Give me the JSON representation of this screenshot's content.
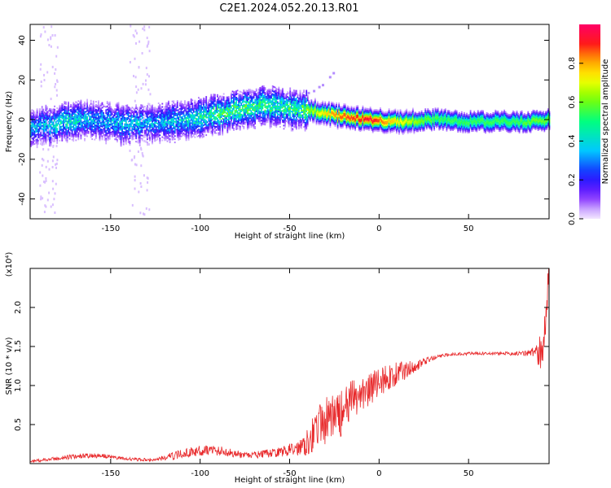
{
  "title": "C2E1.2024.052.20.13.R01",
  "chart_data": [
    {
      "type": "heatmap",
      "xlabel": "Height of straight line (km)",
      "ylabel": "Frequency (Hz)",
      "xlim": [
        -195,
        95
      ],
      "ylim": [
        -50,
        48
      ],
      "xticks": [
        -150,
        -100,
        -50,
        0,
        50
      ],
      "yticks": [
        -40,
        -20,
        0,
        20,
        40
      ],
      "colorbar": {
        "label": "Normalized spectral amplitude",
        "range": [
          0,
          1
        ],
        "ticks": [
          "0.0",
          "0.2",
          "0.4",
          "0.6",
          "0.8"
        ],
        "tick_values": [
          0.0,
          0.2,
          0.4,
          0.6,
          0.8
        ],
        "colormap": "rainbow (purple-blue-cyan-green-yellow-red-magenta)"
      },
      "ridge": {
        "x": [
          -195,
          -185,
          -175,
          -165,
          -155,
          -145,
          -135,
          -125,
          -115,
          -105,
          -95,
          -85,
          -75,
          -65,
          -55,
          -45,
          -35,
          -25,
          -15,
          -5,
          5,
          15,
          25,
          35,
          45,
          55,
          65,
          75,
          85,
          95
        ],
        "frequency": [
          -4,
          -3,
          -1,
          0,
          -1,
          -2,
          -2,
          -2,
          -1,
          0,
          2,
          4,
          6,
          7,
          6,
          5,
          4,
          2,
          1,
          0,
          -1,
          -1,
          0,
          0,
          -1,
          -1,
          -1,
          -1,
          -1,
          0
        ],
        "amplitude": [
          0.35,
          0.4,
          0.45,
          0.4,
          0.35,
          0.4,
          0.4,
          0.35,
          0.4,
          0.45,
          0.5,
          0.55,
          0.55,
          0.5,
          0.5,
          0.55,
          0.7,
          0.85,
          0.9,
          0.95,
          0.8,
          0.7,
          0.6,
          0.55,
          0.55,
          0.55,
          0.55,
          0.55,
          0.6,
          0.6
        ]
      }
    },
    {
      "type": "line",
      "xlabel": "Height of straight line (km)",
      "ylabel": "SNR (10 * v/v)",
      "y_multiplier": "(x10⁴)",
      "xlim": [
        -195,
        95
      ],
      "ylim": [
        0,
        2.5
      ],
      "xticks": [
        -150,
        -100,
        -50,
        0,
        50
      ],
      "yticks": [
        0.5,
        1.0,
        1.5,
        2.0
      ],
      "color": "#e8292b",
      "series": [
        {
          "x": [
            -195,
            -185,
            -175,
            -165,
            -155,
            -145,
            -135,
            -125,
            -115,
            -105,
            -95,
            -85,
            -75,
            -65,
            -55,
            -45,
            -40,
            -35,
            -30,
            -25,
            -20,
            -15,
            -10,
            -5,
            0,
            5,
            10,
            15,
            20,
            25,
            30,
            35,
            40,
            50,
            60,
            70,
            80,
            85,
            88,
            90,
            92,
            94
          ],
          "y": [
            0.03,
            0.05,
            0.08,
            0.1,
            0.1,
            0.07,
            0.05,
            0.05,
            0.1,
            0.15,
            0.18,
            0.15,
            0.1,
            0.12,
            0.15,
            0.2,
            0.3,
            0.45,
            0.55,
            0.6,
            0.65,
            0.8,
            0.9,
            0.95,
            1.05,
            1.1,
            1.15,
            1.2,
            1.25,
            1.3,
            1.35,
            1.38,
            1.4,
            1.41,
            1.41,
            1.41,
            1.41,
            1.42,
            1.45,
            1.3,
            1.8,
            2.3
          ],
          "noise": [
            0.02,
            0.02,
            0.03,
            0.03,
            0.03,
            0.02,
            0.02,
            0.02,
            0.05,
            0.06,
            0.07,
            0.06,
            0.04,
            0.05,
            0.06,
            0.1,
            0.2,
            0.25,
            0.3,
            0.3,
            0.3,
            0.28,
            0.25,
            0.22,
            0.2,
            0.18,
            0.15,
            0.12,
            0.08,
            0.05,
            0.03,
            0.02,
            0.02,
            0.02,
            0.02,
            0.02,
            0.03,
            0.05,
            0.1,
            0.35,
            0.4,
            0.4
          ]
        }
      ]
    }
  ]
}
